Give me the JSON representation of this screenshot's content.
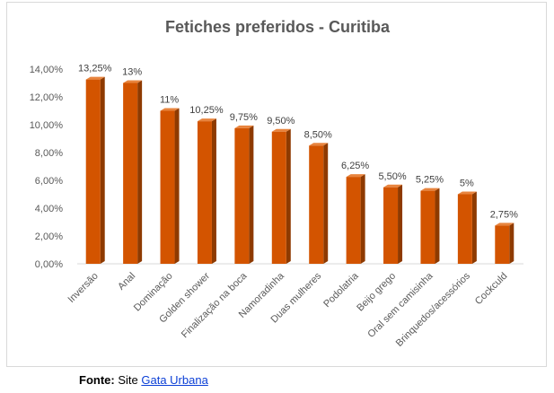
{
  "chart_data": {
    "type": "bar",
    "title": "Fetiches preferidos - Curitiba",
    "categories": [
      "Inversão",
      "Anal",
      "Dominação",
      "Golden shower",
      "Finalização na boca",
      "Namoradinha",
      "Duas mulheres",
      "Podolatria",
      "Beijo grego",
      "Oral sem camisinha",
      "Brinquedos/acessórios",
      "Cockculd"
    ],
    "values": [
      13.25,
      13,
      11,
      10.25,
      9.75,
      9.5,
      8.5,
      6.25,
      5.5,
      5.25,
      5,
      2.75
    ],
    "data_labels": [
      "13,25%",
      "13%",
      "11%",
      "10,25%",
      "9,75%",
      "9,50%",
      "8,50%",
      "6,25%",
      "5,50%",
      "5,25%",
      "5%",
      "2,75%"
    ],
    "y_ticks": [
      "0,00%",
      "2,00%",
      "4,00%",
      "6,00%",
      "8,00%",
      "10,00%",
      "12,00%",
      "14,00%"
    ],
    "ylim": [
      0,
      14
    ],
    "xlabel": "",
    "ylabel": "",
    "grid": false,
    "legend": "none",
    "bar_color": "#d35400",
    "bar_side_color": "#8e3a00",
    "bar_top_color": "#e8843e"
  },
  "source": {
    "label": "Fonte:",
    "text": "Site",
    "link": "Gata Urbana"
  }
}
